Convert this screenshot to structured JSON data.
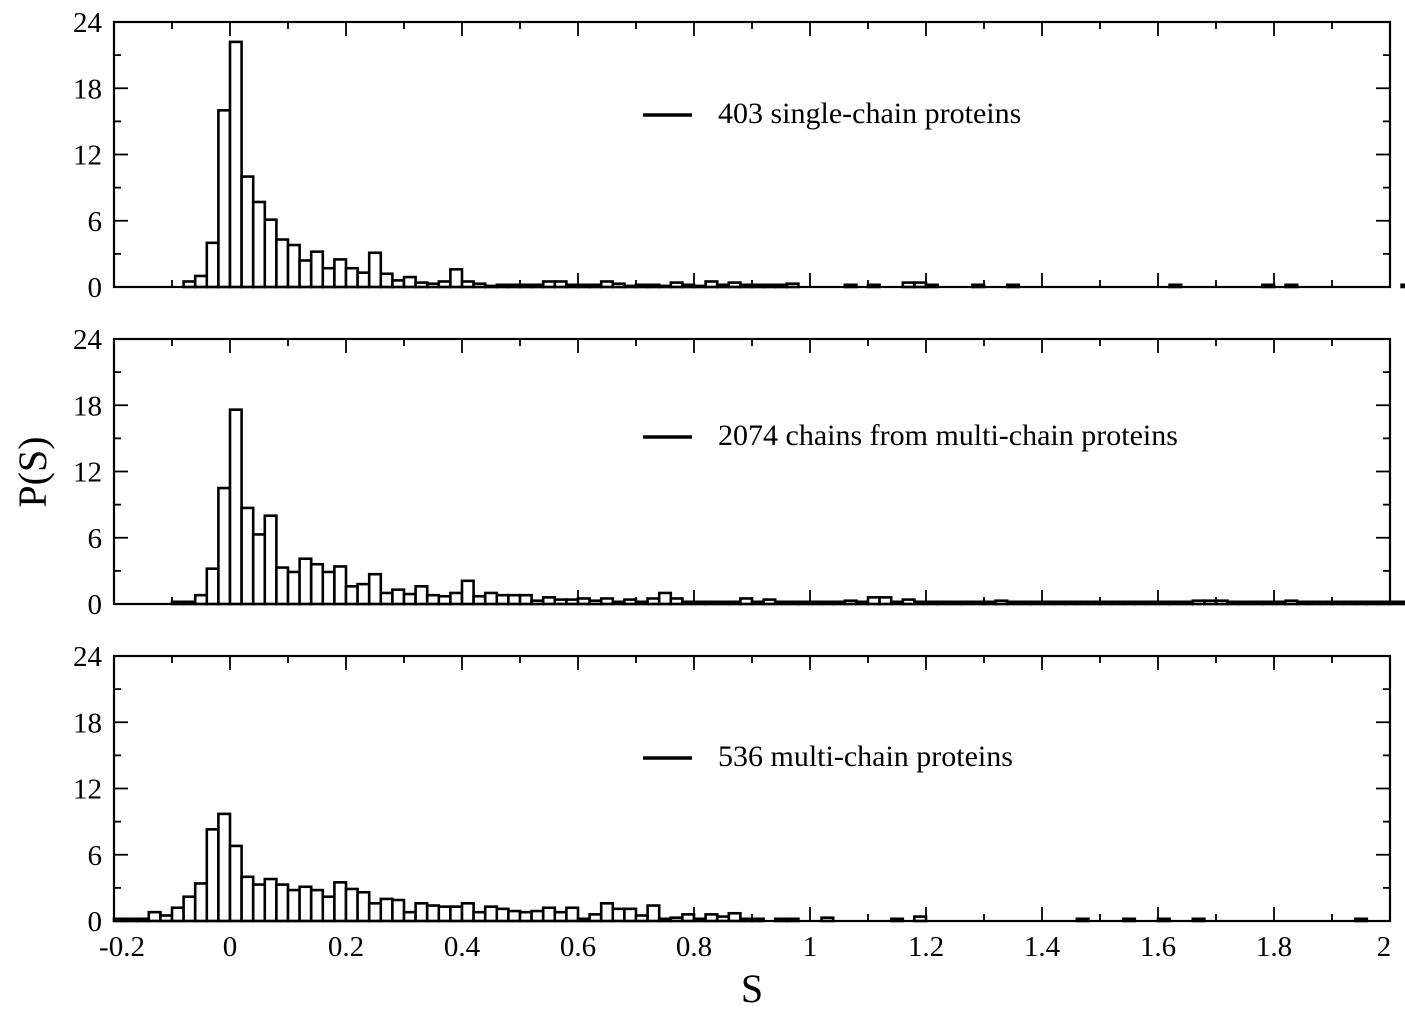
{
  "xlabel": "S",
  "ylabel": "P(S)",
  "x_tick_labels": [
    "-0.2",
    "0",
    "0.2",
    "0.4",
    "0.6",
    "0.8",
    "1",
    "1.2",
    "1.4",
    "1.6",
    "1.8",
    "2"
  ],
  "y_tick_labels": [
    "0",
    "6",
    "12",
    "18",
    "24"
  ],
  "chart_data": [
    {
      "type": "bar",
      "legend": "403 single-chain proteins",
      "xlim": [
        -0.2,
        2.0
      ],
      "ylim": [
        0,
        24
      ],
      "bin_width": 0.02,
      "bin_start": -0.08,
      "values": [
        0.5,
        1.0,
        4.0,
        16.0,
        22.2,
        10.0,
        7.7,
        6.1,
        4.3,
        3.8,
        2.4,
        3.2,
        1.7,
        2.5,
        1.7,
        1.3,
        3.1,
        1.2,
        0.6,
        0.9,
        0.4,
        0.3,
        0.5,
        1.6,
        0.5,
        0.3,
        0.1,
        0.2,
        0.2,
        0.2,
        0.2,
        0.5,
        0.5,
        0.2,
        0.2,
        0.2,
        0.5,
        0.3,
        0.1,
        0.2,
        0.2,
        0.1,
        0.4,
        0.2,
        0.1,
        0.5,
        0.2,
        0.4,
        0.2,
        0.2,
        0.2,
        0.2,
        0.3,
        0,
        0,
        0,
        0,
        0.2,
        0,
        0.2,
        0,
        0,
        0.4,
        0.4,
        0.2,
        0,
        0,
        0,
        0.2,
        0,
        0,
        0.2,
        0,
        0,
        0,
        0,
        0,
        0,
        0,
        0,
        0,
        0,
        0,
        0,
        0,
        0.2,
        0,
        0,
        0,
        0,
        0,
        0,
        0,
        0.2,
        0,
        0.2,
        0,
        0,
        0,
        0,
        0,
        0,
        0,
        0,
        0,
        0.2,
        0,
        0,
        0,
        0
      ]
    },
    {
      "type": "bar",
      "legend": "2074 chains from multi-chain proteins",
      "xlim": [
        -0.2,
        2.0
      ],
      "ylim": [
        0,
        24
      ],
      "bin_width": 0.02,
      "bin_start": -0.1,
      "values": [
        0.2,
        0.2,
        0.8,
        3.2,
        10.5,
        17.6,
        8.7,
        6.3,
        8.0,
        3.3,
        2.9,
        4.1,
        3.6,
        2.9,
        3.4,
        1.6,
        1.8,
        2.7,
        1.0,
        1.3,
        0.9,
        1.6,
        0.8,
        0.7,
        1.0,
        2.1,
        0.7,
        1.0,
        0.8,
        0.8,
        0.8,
        0.3,
        0.6,
        0.4,
        0.4,
        0.5,
        0.3,
        0.5,
        0.2,
        0.4,
        0.2,
        0.5,
        1.0,
        0.5,
        0.2,
        0.2,
        0.2,
        0.2,
        0.2,
        0.5,
        0.2,
        0.4,
        0.2,
        0.2,
        0.2,
        0.2,
        0.2,
        0.2,
        0.3,
        0.2,
        0.6,
        0.6,
        0.2,
        0.4,
        0.2,
        0.2,
        0.2,
        0.2,
        0.2,
        0.2,
        0.2,
        0.3,
        0.2,
        0.2,
        0.2,
        0.2,
        0.2,
        0.2,
        0.2,
        0.2,
        0.2,
        0.2,
        0.2,
        0.2,
        0.2,
        0.2,
        0.2,
        0.2,
        0.3,
        0.3,
        0.3,
        0.2,
        0.2,
        0.2,
        0.2,
        0.2,
        0.3,
        0.2,
        0.2,
        0.2,
        0.2,
        0.2,
        0.2,
        0.2,
        0.2,
        0.2,
        0.2,
        0.2,
        0.2,
        0.2,
        0.2,
        0.2,
        0.2,
        0.2
      ]
    },
    {
      "type": "bar",
      "legend": "536 multi-chain proteins",
      "xlim": [
        -0.2,
        2.0
      ],
      "ylim": [
        0,
        24
      ],
      "bin_width": 0.02,
      "bin_start": -0.2,
      "values": [
        0.2,
        0.2,
        0.2,
        0.8,
        0.5,
        1.2,
        2.2,
        3.4,
        8.3,
        9.7,
        6.8,
        4.0,
        3.3,
        3.8,
        3.3,
        2.8,
        3.1,
        2.8,
        2.2,
        3.5,
        2.9,
        2.6,
        1.6,
        2.0,
        1.9,
        0.8,
        1.6,
        1.4,
        1.3,
        1.3,
        1.6,
        0.8,
        1.3,
        1.1,
        0.9,
        0.8,
        0.9,
        1.2,
        0.8,
        1.2,
        0.2,
        0.6,
        1.6,
        1.1,
        1.1,
        0.5,
        1.4,
        0.2,
        0.3,
        0.6,
        0.2,
        0.6,
        0.4,
        0.7,
        0.2,
        0.2,
        0,
        0.2,
        0.2,
        0,
        0,
        0.3,
        0,
        0,
        0,
        0,
        0,
        0.2,
        0,
        0.4,
        0,
        0,
        0,
        0,
        0,
        0,
        0,
        0,
        0,
        0,
        0,
        0,
        0,
        0.2,
        0,
        0,
        0,
        0.2,
        0,
        0,
        0.2,
        0,
        0,
        0.2,
        0,
        0,
        0,
        0,
        0,
        0,
        0,
        0,
        0,
        0,
        0,
        0,
        0,
        0.2,
        0,
        0,
        0
      ]
    }
  ]
}
